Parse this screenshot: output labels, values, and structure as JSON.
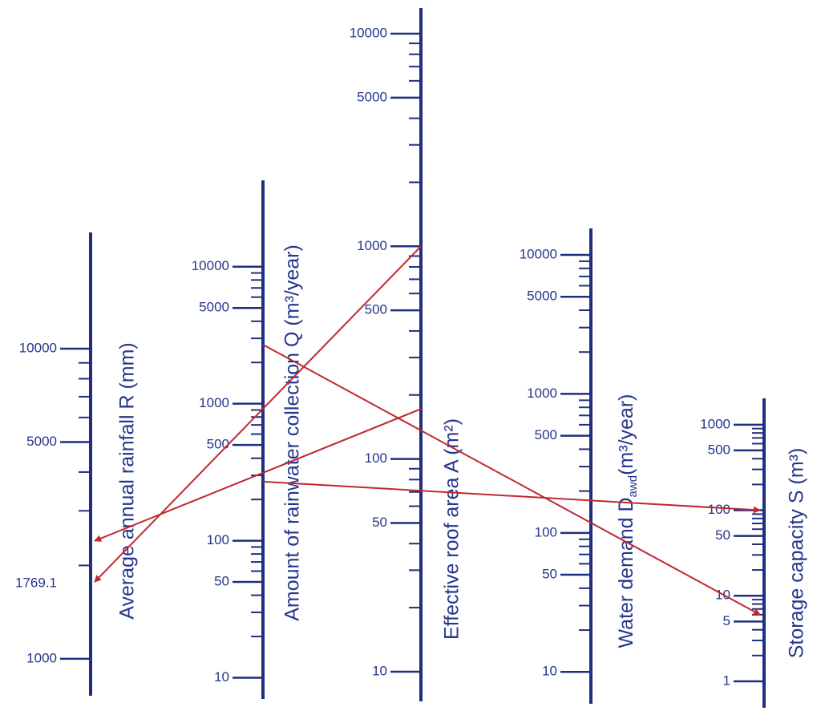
{
  "scales": {
    "R": {
      "label": "Average annual rainfall R (mm)",
      "lim": [
        760,
        23700
      ],
      "ticks": [
        1000,
        5000,
        10000
      ],
      "minor_ticks": [
        2000,
        3000,
        4000,
        6000,
        7000,
        8000,
        9000
      ]
    },
    "Q": {
      "label": "Amount of rainwater collection Q (m³/year)",
      "lim": [
        7,
        42700
      ],
      "ticks": [
        10,
        50,
        100,
        500,
        1000,
        5000,
        10000
      ],
      "minor_ticks": [
        20,
        30,
        40,
        60,
        70,
        80,
        90,
        200,
        300,
        400,
        600,
        700,
        800,
        900,
        2000,
        3000,
        4000,
        6000,
        7000,
        8000,
        9000
      ]
    },
    "A": {
      "label": "Effective roof area A (m²)",
      "lim": [
        7.25,
        13200
      ],
      "ticks": [
        10,
        50,
        100,
        500,
        1000,
        5000,
        10000
      ],
      "minor_ticks": [
        20,
        30,
        40,
        60,
        70,
        80,
        90,
        200,
        300,
        400,
        600,
        700,
        800,
        900,
        2000,
        3000,
        4000,
        6000,
        7000,
        8000,
        9000
      ]
    },
    "D": {
      "label": [
        {
          "text": "Water demand D"
        },
        {
          "text": "awd",
          "sub": true
        },
        {
          "text": "(m³/year)"
        }
      ],
      "lim": [
        5.9,
        15500
      ],
      "ticks": [
        10,
        50,
        100,
        500,
        1000,
        5000,
        10000
      ],
      "minor_ticks": [
        20,
        30,
        40,
        60,
        70,
        80,
        90,
        200,
        300,
        400,
        600,
        700,
        800,
        900,
        2000,
        3000,
        4000,
        6000,
        7000,
        8000,
        9000
      ]
    },
    "S": {
      "label": "Storage capacity S (m³)",
      "lim": [
        0.49,
        2030
      ],
      "ticks": [
        1,
        5,
        10,
        50,
        100,
        500,
        1000
      ],
      "minor_ticks": [
        2,
        3,
        4,
        6,
        7,
        8,
        9,
        20,
        30,
        40,
        60,
        70,
        80,
        90,
        200,
        300,
        400,
        600,
        700,
        800,
        900
      ]
    }
  },
  "isopleths": [
    {
      "from": {
        "scale": "A",
        "value": 1000
      },
      "to": {
        "scale": "R",
        "value": 1769.1,
        "printed": true
      }
    },
    {
      "from": {
        "scale": "A",
        "value": 172
      },
      "to": {
        "scale": "R",
        "value": 2400
      }
    },
    {
      "from": {
        "scale": "Q",
        "value": 2700
      },
      "to": {
        "scale": "S",
        "value": 6
      }
    },
    {
      "from": {
        "scale": "Q",
        "value": 270
      },
      "to": {
        "scale": "S",
        "value": 100
      }
    }
  ]
}
